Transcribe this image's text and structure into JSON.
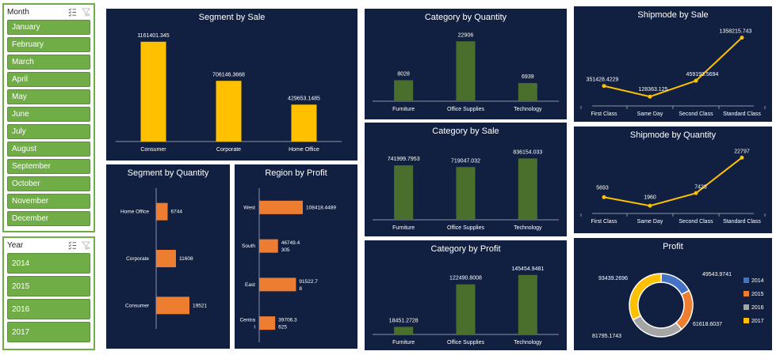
{
  "slicers": {
    "month": {
      "title": "Month",
      "items": [
        "January",
        "February",
        "March",
        "April",
        "May",
        "June",
        "July",
        "August",
        "September",
        "October",
        "November",
        "December"
      ]
    },
    "year": {
      "title": "Year",
      "items": [
        "2014",
        "2015",
        "2016",
        "2017"
      ]
    }
  },
  "colors": {
    "panel_bg": "#112040",
    "yellow": "#ffc000",
    "green": "#4a6f2c",
    "orange": "#ed7d31",
    "line": "#ffc000",
    "slicer_green": "#70ad47",
    "donut": [
      "#4472c4",
      "#ed7d31",
      "#a5a5a5",
      "#ffc000"
    ]
  },
  "chart_data": [
    {
      "id": "segment_sale",
      "type": "bar",
      "title": "Segment by Sale",
      "categories": [
        "Consumer",
        "Corporate",
        "Home Office"
      ],
      "values": [
        1161401.345,
        706146.3668,
        429653.1485
      ],
      "labels": [
        "1161401.345",
        "706146.3668",
        "429653.1485"
      ]
    },
    {
      "id": "category_quantity",
      "type": "bar",
      "title": "Category by Quantity",
      "categories": [
        "Furniture",
        "Office Supplies",
        "Technology"
      ],
      "values": [
        8028,
        22906,
        6939
      ],
      "labels": [
        "8028",
        "22906",
        "6939"
      ]
    },
    {
      "id": "shipmode_sale",
      "type": "line",
      "title": "Shipmode by Sale",
      "categories": [
        "First Class",
        "Same Day",
        "Second Class",
        "Standard Class"
      ],
      "values": [
        351428.4229,
        128363.125,
        459193.5694,
        1358215.743
      ],
      "labels": [
        "351428.4229",
        "128363.125",
        "459193.5694",
        "1358215.743"
      ]
    },
    {
      "id": "category_sale",
      "type": "bar",
      "title": "Category by Sale",
      "categories": [
        "Furniture",
        "Office Supplies",
        "Technology"
      ],
      "values": [
        741999.7953,
        719047.032,
        836154.033
      ],
      "labels": [
        "741999.7953",
        "719047.032",
        "836154.033"
      ]
    },
    {
      "id": "shipmode_quantity",
      "type": "line",
      "title": "Shipmode by Quantity",
      "categories": [
        "First Class",
        "Same Day",
        "Second Class",
        "Standard Class"
      ],
      "values": [
        5693,
        1960,
        7423,
        22797
      ],
      "labels": [
        "5693",
        "1960",
        "7423",
        "22797"
      ]
    },
    {
      "id": "segment_quantity",
      "type": "bar",
      "orientation": "horizontal",
      "title": "Segment by Quantity",
      "categories": [
        "Home Office",
        "Corporate",
        "Consumer"
      ],
      "values": [
        6744,
        11608,
        19521
      ],
      "labels": [
        "6744",
        "11608",
        "19521"
      ]
    },
    {
      "id": "region_profit",
      "type": "bar",
      "orientation": "horizontal",
      "title": "Region by Profit",
      "categories": [
        "West",
        "South",
        "East",
        "Central"
      ],
      "category_lines": [
        [
          "West"
        ],
        [
          "South"
        ],
        [
          "East"
        ],
        [
          "Centra",
          "l"
        ]
      ],
      "values": [
        108418.4489,
        46749.4305,
        91522.78,
        39706.3625
      ],
      "labels": [
        [
          "108418.4489"
        ],
        [
          "46749.4",
          "305"
        ],
        [
          "91522.7",
          "8"
        ],
        [
          "39706.3",
          "625"
        ]
      ]
    },
    {
      "id": "category_profit",
      "type": "bar",
      "title": "Category by Profit",
      "categories": [
        "Furniture",
        "Office Supplies",
        "Technology"
      ],
      "values": [
        18451.2728,
        122490.8008,
        145454.9481
      ],
      "labels": [
        "18451.2728",
        "122490.8008",
        "145454.9481"
      ]
    },
    {
      "id": "profit",
      "type": "pie",
      "donut": true,
      "title": "Profit",
      "categories": [
        "2014",
        "2015",
        "2016",
        "2017"
      ],
      "values": [
        49543.9741,
        61618.6037,
        81795.1743,
        93439.2696
      ],
      "labels": [
        "49543.9741",
        "61618.6037",
        "81795.1743",
        "93439.2696"
      ],
      "legend": "right"
    }
  ]
}
